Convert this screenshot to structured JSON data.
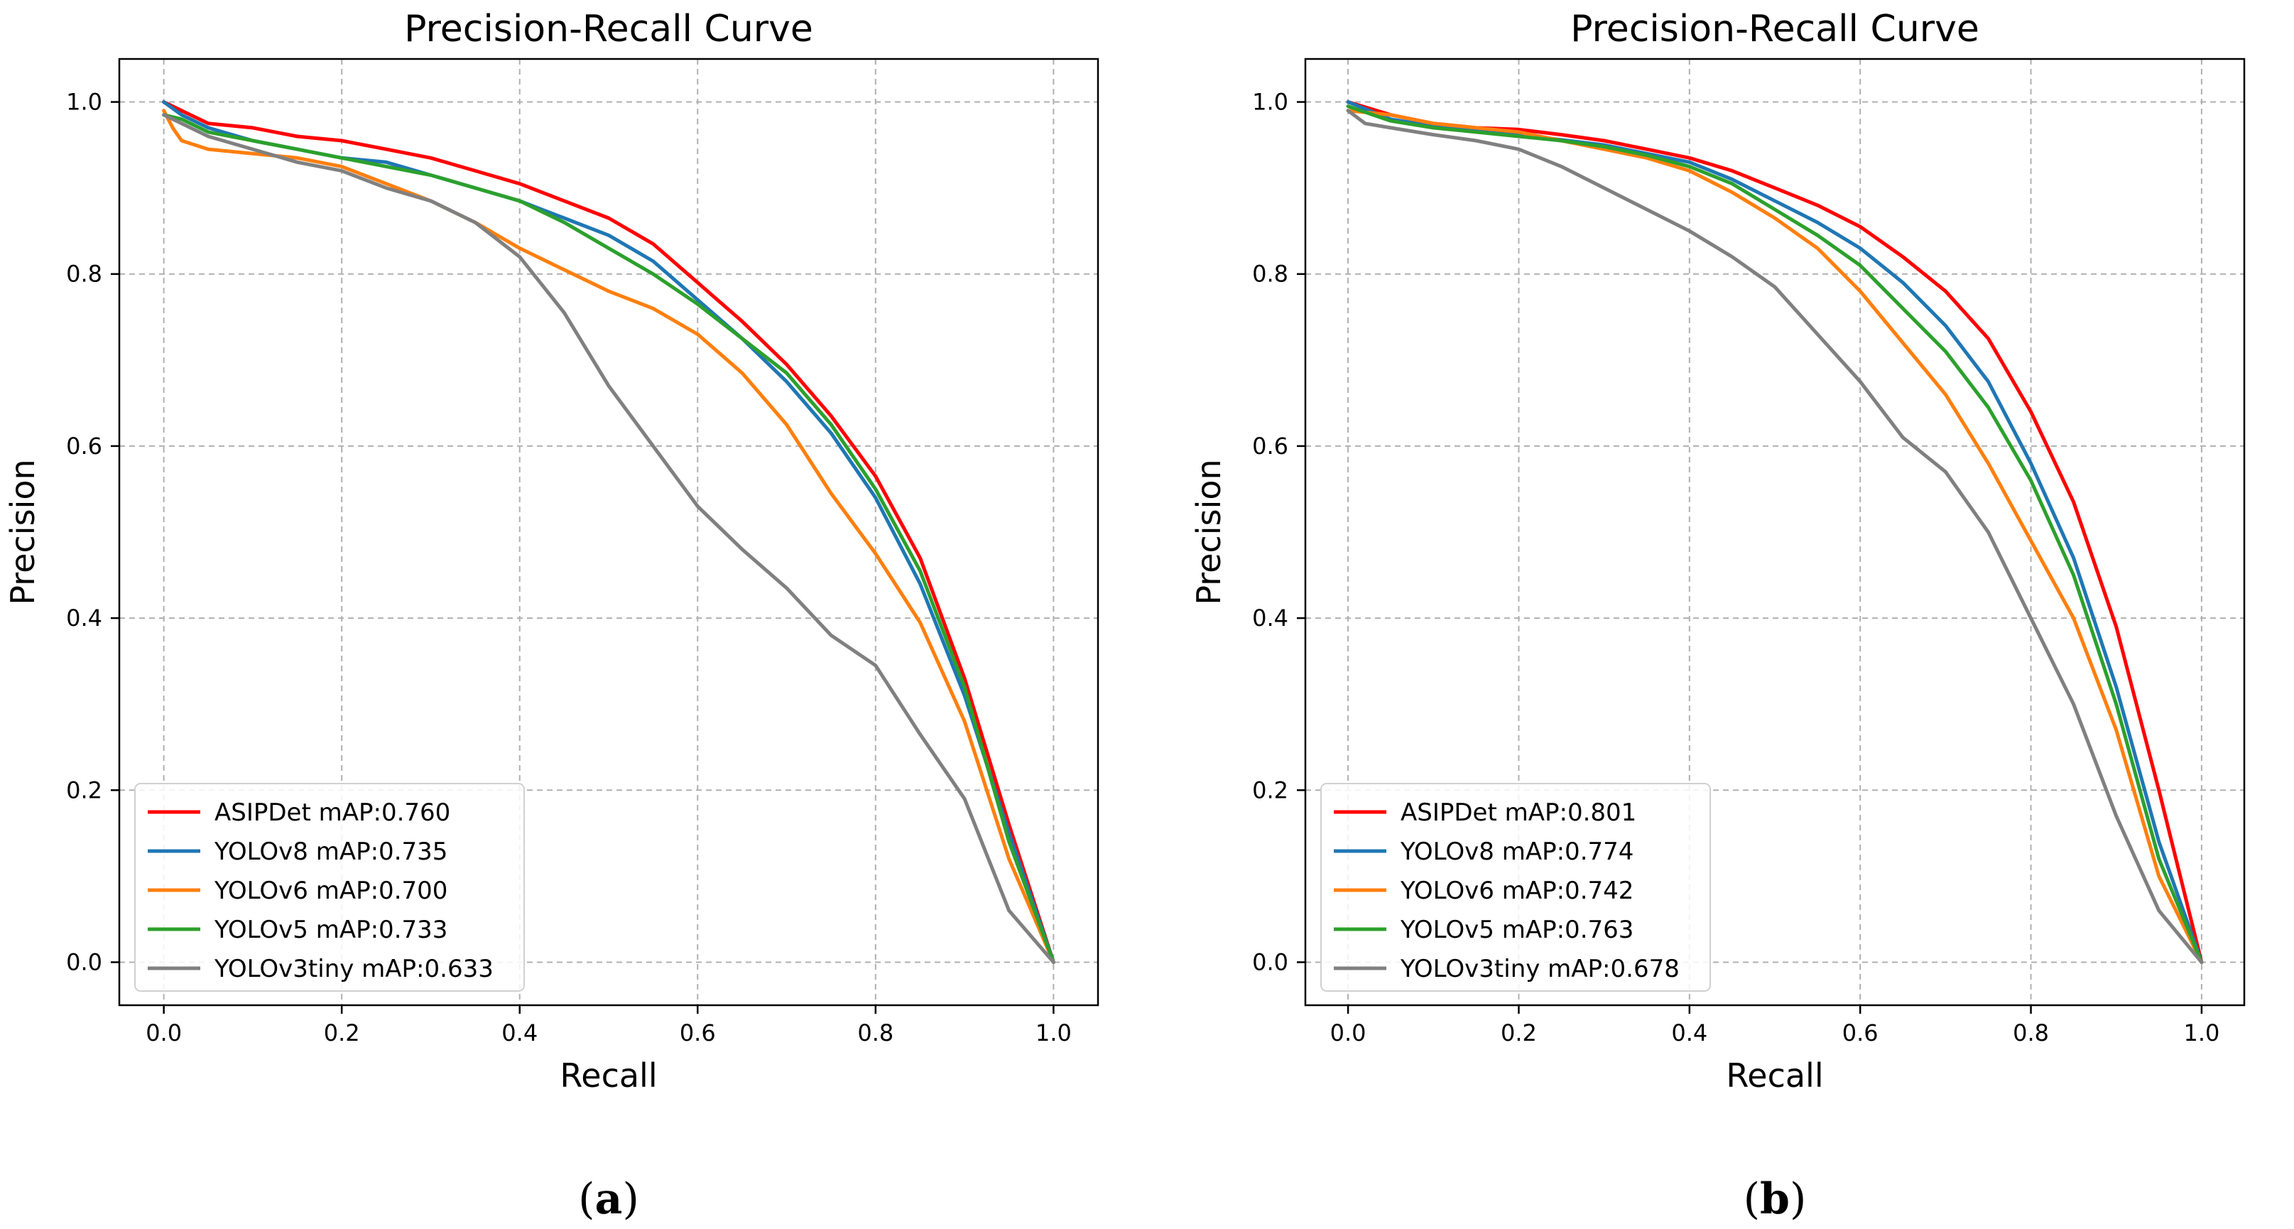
{
  "chart_data": [
    {
      "type": "line",
      "title": "Precision-Recall Curve",
      "xlabel": "Recall",
      "ylabel": "Precision",
      "xlim": [
        -0.05,
        1.05
      ],
      "ylim": [
        -0.05,
        1.05
      ],
      "xticks": [
        "0.0",
        "0.2",
        "0.4",
        "0.6",
        "0.8",
        "1.0"
      ],
      "yticks": [
        "0.0",
        "0.2",
        "0.4",
        "0.6",
        "0.8",
        "1.0"
      ],
      "grid": true,
      "legend_position": "lower-left",
      "caption_label": "a",
      "series": [
        {
          "name": "ASIPDet mAP:0.760",
          "color": "#ff0000",
          "x": [
            0,
            0.02,
            0.05,
            0.1,
            0.15,
            0.2,
            0.25,
            0.3,
            0.35,
            0.4,
            0.45,
            0.5,
            0.55,
            0.6,
            0.65,
            0.7,
            0.75,
            0.8,
            0.85,
            0.9,
            0.95,
            1.0
          ],
          "y": [
            1.0,
            0.99,
            0.975,
            0.97,
            0.96,
            0.955,
            0.945,
            0.935,
            0.92,
            0.905,
            0.885,
            0.865,
            0.835,
            0.79,
            0.745,
            0.695,
            0.635,
            0.565,
            0.47,
            0.33,
            0.16,
            0.0
          ]
        },
        {
          "name": "YOLOv8 mAP:0.735",
          "color": "#1f77b4",
          "x": [
            0,
            0.02,
            0.05,
            0.1,
            0.15,
            0.2,
            0.25,
            0.3,
            0.35,
            0.4,
            0.45,
            0.5,
            0.55,
            0.6,
            0.65,
            0.7,
            0.75,
            0.8,
            0.85,
            0.9,
            0.95,
            1.0
          ],
          "y": [
            1.0,
            0.985,
            0.97,
            0.955,
            0.945,
            0.935,
            0.93,
            0.915,
            0.9,
            0.885,
            0.865,
            0.845,
            0.815,
            0.77,
            0.725,
            0.675,
            0.615,
            0.54,
            0.44,
            0.31,
            0.15,
            0.0
          ]
        },
        {
          "name": "YOLOv6 mAP:0.700",
          "color": "#ff7f0e",
          "x": [
            0,
            0.01,
            0.02,
            0.05,
            0.1,
            0.15,
            0.2,
            0.25,
            0.3,
            0.35,
            0.4,
            0.45,
            0.5,
            0.55,
            0.6,
            0.65,
            0.7,
            0.75,
            0.8,
            0.85,
            0.9,
            0.95,
            1.0
          ],
          "y": [
            0.99,
            0.97,
            0.955,
            0.945,
            0.94,
            0.935,
            0.925,
            0.905,
            0.885,
            0.86,
            0.83,
            0.805,
            0.78,
            0.76,
            0.73,
            0.685,
            0.625,
            0.545,
            0.475,
            0.395,
            0.28,
            0.12,
            0.0
          ]
        },
        {
          "name": "YOLOv5 mAP:0.733",
          "color": "#2ca02c",
          "x": [
            0,
            0.02,
            0.05,
            0.1,
            0.15,
            0.2,
            0.25,
            0.3,
            0.35,
            0.4,
            0.45,
            0.5,
            0.55,
            0.6,
            0.65,
            0.7,
            0.75,
            0.8,
            0.85,
            0.9,
            0.95,
            1.0
          ],
          "y": [
            0.985,
            0.98,
            0.965,
            0.955,
            0.945,
            0.935,
            0.925,
            0.915,
            0.9,
            0.885,
            0.86,
            0.83,
            0.8,
            0.765,
            0.725,
            0.685,
            0.625,
            0.55,
            0.455,
            0.32,
            0.14,
            0.0
          ]
        },
        {
          "name": "YOLOv3tiny mAP:0.633",
          "color": "#808080",
          "x": [
            0,
            0.02,
            0.05,
            0.1,
            0.15,
            0.2,
            0.25,
            0.3,
            0.35,
            0.4,
            0.45,
            0.5,
            0.55,
            0.6,
            0.65,
            0.7,
            0.75,
            0.8,
            0.85,
            0.9,
            0.95,
            1.0
          ],
          "y": [
            0.985,
            0.975,
            0.96,
            0.945,
            0.93,
            0.92,
            0.9,
            0.885,
            0.86,
            0.82,
            0.755,
            0.67,
            0.6,
            0.53,
            0.48,
            0.435,
            0.38,
            0.345,
            0.265,
            0.19,
            0.06,
            0.0
          ]
        }
      ]
    },
    {
      "type": "line",
      "title": "Precision-Recall Curve",
      "xlabel": "Recall",
      "ylabel": "Precision",
      "xlim": [
        -0.05,
        1.05
      ],
      "ylim": [
        -0.05,
        1.05
      ],
      "xticks": [
        "0.0",
        "0.2",
        "0.4",
        "0.6",
        "0.8",
        "1.0"
      ],
      "yticks": [
        "0.0",
        "0.2",
        "0.4",
        "0.6",
        "0.8",
        "1.0"
      ],
      "grid": true,
      "legend_position": "lower-left",
      "caption_label": "b",
      "series": [
        {
          "name": "ASIPDet mAP:0.801",
          "color": "#ff0000",
          "x": [
            0,
            0.05,
            0.1,
            0.15,
            0.2,
            0.25,
            0.3,
            0.35,
            0.4,
            0.45,
            0.5,
            0.55,
            0.6,
            0.65,
            0.7,
            0.75,
            0.8,
            0.85,
            0.9,
            0.95,
            1.0
          ],
          "y": [
            1.0,
            0.985,
            0.975,
            0.97,
            0.968,
            0.962,
            0.955,
            0.945,
            0.935,
            0.92,
            0.9,
            0.88,
            0.855,
            0.82,
            0.78,
            0.725,
            0.64,
            0.535,
            0.39,
            0.2,
            0.0
          ]
        },
        {
          "name": "YOLOv8 mAP:0.774",
          "color": "#1f77b4",
          "x": [
            0,
            0.05,
            0.1,
            0.15,
            0.2,
            0.25,
            0.3,
            0.35,
            0.4,
            0.45,
            0.5,
            0.55,
            0.6,
            0.65,
            0.7,
            0.75,
            0.8,
            0.85,
            0.9,
            0.95,
            1.0
          ],
          "y": [
            1.0,
            0.98,
            0.972,
            0.966,
            0.962,
            0.956,
            0.95,
            0.94,
            0.93,
            0.91,
            0.885,
            0.86,
            0.83,
            0.79,
            0.74,
            0.675,
            0.58,
            0.47,
            0.32,
            0.14,
            0.0
          ]
        },
        {
          "name": "YOLOv6 mAP:0.742",
          "color": "#ff7f0e",
          "x": [
            0,
            0.05,
            0.1,
            0.15,
            0.2,
            0.25,
            0.3,
            0.35,
            0.4,
            0.45,
            0.5,
            0.55,
            0.6,
            0.65,
            0.7,
            0.75,
            0.8,
            0.85,
            0.9,
            0.95,
            1.0
          ],
          "y": [
            0.99,
            0.985,
            0.975,
            0.97,
            0.965,
            0.955,
            0.945,
            0.935,
            0.92,
            0.895,
            0.865,
            0.83,
            0.78,
            0.72,
            0.66,
            0.58,
            0.49,
            0.4,
            0.27,
            0.1,
            0.0
          ]
        },
        {
          "name": "YOLOv5 mAP:0.763",
          "color": "#2ca02c",
          "x": [
            0,
            0.05,
            0.1,
            0.15,
            0.2,
            0.25,
            0.3,
            0.35,
            0.4,
            0.45,
            0.5,
            0.55,
            0.6,
            0.65,
            0.7,
            0.75,
            0.8,
            0.85,
            0.9,
            0.95,
            1.0
          ],
          "y": [
            0.995,
            0.978,
            0.97,
            0.965,
            0.96,
            0.955,
            0.948,
            0.938,
            0.925,
            0.905,
            0.875,
            0.845,
            0.81,
            0.76,
            0.71,
            0.645,
            0.56,
            0.45,
            0.3,
            0.12,
            0.0
          ]
        },
        {
          "name": "YOLOv3tiny mAP:0.678",
          "color": "#808080",
          "x": [
            0,
            0.02,
            0.05,
            0.1,
            0.15,
            0.2,
            0.25,
            0.3,
            0.35,
            0.4,
            0.45,
            0.5,
            0.55,
            0.6,
            0.65,
            0.7,
            0.75,
            0.8,
            0.85,
            0.9,
            0.95,
            1.0
          ],
          "y": [
            0.99,
            0.975,
            0.97,
            0.962,
            0.955,
            0.945,
            0.925,
            0.9,
            0.875,
            0.85,
            0.82,
            0.785,
            0.73,
            0.675,
            0.61,
            0.57,
            0.5,
            0.4,
            0.3,
            0.17,
            0.06,
            0.0
          ]
        }
      ]
    }
  ]
}
